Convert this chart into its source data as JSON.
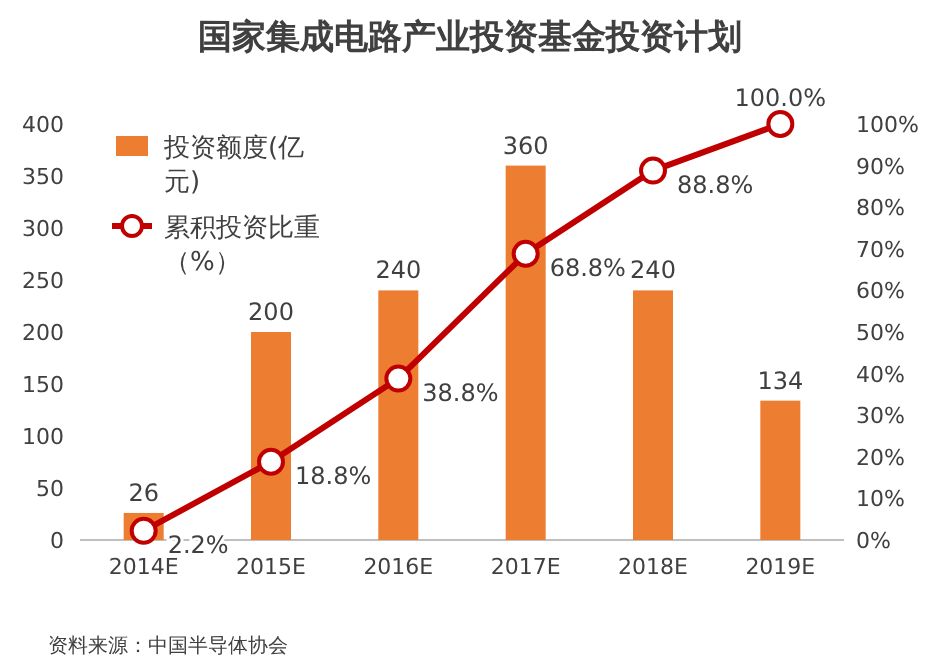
{
  "chart_data": {
    "type": "bar",
    "title": "国家集成电路产业投资基金投资计划",
    "categories": [
      "2014E",
      "2015E",
      "2016E",
      "2017E",
      "2018E",
      "2019E"
    ],
    "series": [
      {
        "name": "投资额度(亿元)",
        "color": "#ed7d31",
        "values": [
          26,
          200,
          240,
          360,
          240,
          134
        ],
        "value_labels": [
          "26",
          "200",
          "240",
          "360",
          "240",
          "134"
        ]
      },
      {
        "name": "累积投资比重（%）",
        "type": "line",
        "axis": "y2",
        "color": "#c00000",
        "marker": "circle",
        "values": [
          2.2,
          18.8,
          38.8,
          68.8,
          88.8,
          100.0
        ],
        "value_labels": [
          "2.2%",
          "18.8%",
          "38.8%",
          "68.8%",
          "88.8%",
          "100.0%"
        ]
      }
    ],
    "ylim": [
      0,
      400
    ],
    "yticks": [
      0,
      50,
      100,
      150,
      200,
      250,
      300,
      350,
      400
    ],
    "y2lim": [
      0,
      100
    ],
    "y2ticks": [
      {
        "value": 0,
        "label": "0%"
      },
      {
        "value": 10,
        "label": "10%"
      },
      {
        "value": 20,
        "label": "20%"
      },
      {
        "value": 30,
        "label": "30%"
      },
      {
        "value": 40,
        "label": "40%"
      },
      {
        "value": 50,
        "label": "50%"
      },
      {
        "value": 60,
        "label": "60%"
      },
      {
        "value": 70,
        "label": "70%"
      },
      {
        "value": 80,
        "label": "80%"
      },
      {
        "value": 90,
        "label": "90%"
      },
      {
        "value": 100,
        "label": "100%"
      }
    ],
    "legend": "top left",
    "grid": false,
    "annotations": [
      "资料来源：中国半导体协会"
    ]
  }
}
